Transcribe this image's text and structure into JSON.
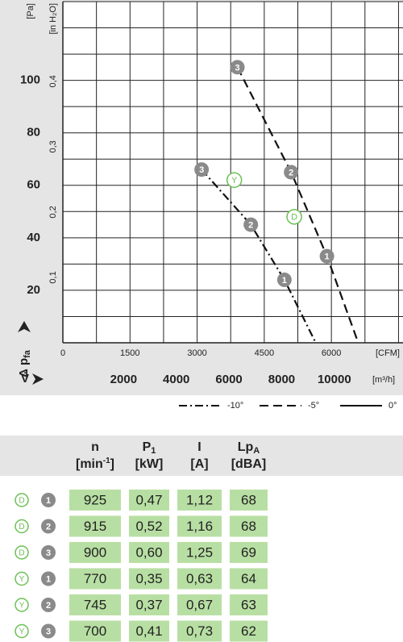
{
  "chart_data": {
    "type": "line",
    "y_unit": "[Pa]",
    "y2_unit": "[in H₂O]",
    "x_unit": "[CFM]",
    "x2_unit": "[m³/h]",
    "y_label": {
      "main": "Δ p",
      "sub": "fa"
    },
    "x_label": "V̇",
    "xlim": [
      0,
      7600
    ],
    "xticks": [
      0,
      1500,
      3000,
      4500,
      6000
    ],
    "x2lim": [
      0,
      12912
    ],
    "x2ticks": [
      2000,
      4000,
      6000,
      8000,
      10000
    ],
    "ylim": [
      0,
      130
    ],
    "yticks": [
      20,
      40,
      60,
      80,
      100
    ],
    "y2lim": [
      0,
      0.522
    ],
    "y2ticks": [
      {
        "value": 0.1,
        "label": "0,1"
      },
      {
        "value": 0.2,
        "label": "0,2"
      },
      {
        "value": 0.3,
        "label": "0,3"
      },
      {
        "value": 0.4,
        "label": "0,4"
      }
    ],
    "xgrid": [
      750,
      1500,
      2250,
      3000,
      3750,
      4500,
      5250,
      6000,
      6750,
      7500
    ],
    "ygrid": [
      10,
      20,
      30,
      40,
      50,
      60,
      70,
      80,
      90,
      100,
      110,
      120,
      130
    ],
    "series": [
      {
        "name": "-10°",
        "color": "#111111",
        "dash": "dashdot",
        "x": [
          3100,
          4200,
          4950,
          5650
        ],
        "values": [
          66,
          45,
          24,
          0
        ],
        "point_labels": [
          "3",
          "2",
          "1",
          null
        ]
      },
      {
        "name": "-5°",
        "color": "#111111",
        "dash": "dashed",
        "x": [
          3900,
          5100,
          5900,
          6600
        ],
        "values": [
          105,
          65,
          33,
          0
        ],
        "point_labels": [
          "3",
          "2",
          "1",
          null
        ]
      }
    ],
    "legend_extra": [
      {
        "name": "0°",
        "dash": "solid"
      }
    ],
    "annotations": [
      {
        "text": "Y",
        "x": 3830,
        "y": 62
      },
      {
        "text": "D",
        "x": 5170,
        "y": 48
      }
    ]
  },
  "table": {
    "header": [
      {
        "name": "n",
        "unit": "[min",
        "sup": "-1",
        "unit_end": "]"
      },
      {
        "name": "P",
        "sub": "1",
        "unit": "[kW]"
      },
      {
        "name": "I",
        "unit": "[A]"
      },
      {
        "name": "Lp",
        "sub": "A",
        "unit": "[dBA]"
      }
    ],
    "rows": [
      {
        "fan": "D",
        "point": "1",
        "cells": [
          "925",
          "0,47",
          "1,12",
          "68"
        ]
      },
      {
        "fan": "D",
        "point": "2",
        "cells": [
          "915",
          "0,52",
          "1,16",
          "68"
        ]
      },
      {
        "fan": "D",
        "point": "3",
        "cells": [
          "900",
          "0,60",
          "1,25",
          "69"
        ]
      },
      {
        "fan": "Y",
        "point": "1",
        "cells": [
          "770",
          "0,35",
          "0,63",
          "64"
        ]
      },
      {
        "fan": "Y",
        "point": "2",
        "cells": [
          "745",
          "0,37",
          "0,67",
          "63"
        ]
      },
      {
        "fan": "Y",
        "point": "3",
        "cells": [
          "700",
          "0,41",
          "0,73",
          "62"
        ]
      }
    ]
  }
}
